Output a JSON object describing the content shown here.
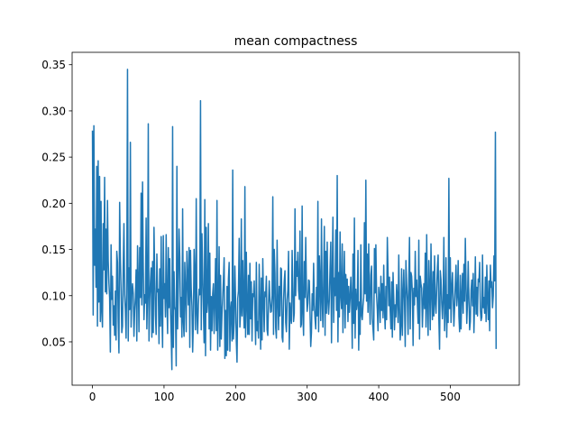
{
  "chart_data": {
    "type": "line",
    "title": "mean compactness",
    "xlabel": "",
    "ylabel": "",
    "xlim": [
      -28.4,
      596.4
    ],
    "ylim": [
      0.0031,
      0.3634
    ],
    "xticks": [
      0,
      100,
      200,
      300,
      400,
      500
    ],
    "yticks": [
      0.05,
      0.1,
      0.15,
      0.2,
      0.25,
      0.3,
      0.35
    ],
    "ytick_labels": [
      "0.05",
      "0.10",
      "0.15",
      "0.20",
      "0.25",
      "0.30",
      "0.35"
    ],
    "grid": false,
    "legend": "none",
    "line_color": "#1f77b4",
    "series": [
      {
        "x_start": 0,
        "x_step": 1,
        "values": [
          0.278,
          0.079,
          0.284,
          0.133,
          0.172,
          0.109,
          0.24,
          0.067,
          0.246,
          0.093,
          0.229,
          0.072,
          0.202,
          0.082,
          0.066,
          0.178,
          0.128,
          0.228,
          0.104,
          0.172,
          0.102,
          0.203,
          0.138,
          0.114,
          0.098,
          0.039,
          0.155,
          0.096,
          0.121,
          0.068,
          0.089,
          0.057,
          0.105,
          0.052,
          0.148,
          0.136,
          0.072,
          0.038,
          0.201,
          0.142,
          0.105,
          0.06,
          0.067,
          0.132,
          0.178,
          0.101,
          0.084,
          0.054,
          0.124,
          0.345,
          0.051,
          0.13,
          0.085,
          0.266,
          0.066,
          0.101,
          0.113,
          0.102,
          0.056,
          0.084,
          0.098,
          0.128,
          0.051,
          0.154,
          0.118,
          0.061,
          0.152,
          0.098,
          0.211,
          0.09,
          0.223,
          0.13,
          0.074,
          0.101,
          0.092,
          0.184,
          0.064,
          0.102,
          0.286,
          0.051,
          0.096,
          0.115,
          0.13,
          0.055,
          0.137,
          0.06,
          0.174,
          0.12,
          0.079,
          0.058,
          0.145,
          0.104,
          0.107,
          0.048,
          0.129,
          0.067,
          0.164,
          0.081,
          0.044,
          0.165,
          0.097,
          0.113,
          0.077,
          0.166,
          0.097,
          0.059,
          0.152,
          0.087,
          0.14,
          0.087,
          0.057,
          0.02,
          0.283,
          0.044,
          0.126,
          0.088,
          0.084,
          0.024,
          0.24,
          0.064,
          0.109,
          0.172,
          0.142,
          0.077,
          0.098,
          0.055,
          0.194,
          0.072,
          0.056,
          0.136,
          0.105,
          0.061,
          0.148,
          0.119,
          0.09,
          0.152,
          0.044,
          0.149,
          0.108,
          0.089,
          0.039,
          0.071,
          0.15,
          0.122,
          0.063,
          0.205,
          0.081,
          0.059,
          0.09,
          0.107,
          0.101,
          0.311,
          0.063,
          0.167,
          0.126,
          0.087,
          0.049,
          0.204,
          0.035,
          0.174,
          0.082,
          0.094,
          0.178,
          0.064,
          0.146,
          0.041,
          0.099,
          0.062,
          0.102,
          0.113,
          0.059,
          0.094,
          0.14,
          0.062,
          0.203,
          0.041,
          0.084,
          0.153,
          0.045,
          0.122,
          0.053,
          0.08,
          0.098,
          0.117,
          0.141,
          0.032,
          0.084,
          0.035,
          0.11,
          0.041,
          0.118,
          0.136,
          0.04,
          0.084,
          0.093,
          0.051,
          0.236,
          0.053,
          0.071,
          0.132,
          0.095,
          0.051,
          0.028,
          0.097,
          0.105,
          0.162,
          0.066,
          0.082,
          0.183,
          0.078,
          0.138,
          0.089,
          0.065,
          0.218,
          0.055,
          0.147,
          0.09,
          0.058,
          0.122,
          0.058,
          0.135,
          0.075,
          0.115,
          0.051,
          0.102,
          0.099,
          0.116,
          0.082,
          0.047,
          0.136,
          0.062,
          0.072,
          0.054,
          0.134,
          0.091,
          0.042,
          0.119,
          0.052,
          0.14,
          0.096,
          0.061,
          0.104,
          0.099,
          0.121,
          0.063,
          0.057,
          0.09,
          0.116,
          0.096,
          0.082,
          0.083,
          0.1,
          0.207,
          0.058,
          0.15,
          0.125,
          0.065,
          0.054,
          0.16,
          0.094,
          0.063,
          0.11,
          0.078,
          0.13,
          0.129,
          0.055,
          0.05,
          0.094,
          0.116,
          0.127,
          0.071,
          0.061,
          0.095,
          0.106,
          0.148,
          0.042,
          0.092,
          0.077,
          0.07,
          0.149,
          0.109,
          0.072,
          0.081,
          0.194,
          0.1,
          0.137,
          0.121,
          0.147,
          0.106,
          0.096,
          0.17,
          0.066,
          0.069,
          0.197,
          0.081,
          0.057,
          0.137,
          0.098,
          0.163,
          0.107,
          0.083,
          0.092,
          0.117,
          0.116,
          0.082,
          0.045,
          0.06,
          0.102,
          0.084,
          0.135,
          0.09,
          0.075,
          0.064,
          0.109,
          0.078,
          0.202,
          0.061,
          0.143,
          0.114,
          0.073,
          0.183,
          0.095,
          0.066,
          0.117,
          0.175,
          0.057,
          0.148,
          0.081,
          0.158,
          0.094,
          0.08,
          0.096,
          0.13,
          0.158,
          0.049,
          0.12,
          0.185,
          0.071,
          0.119,
          0.1,
          0.171,
          0.084,
          0.23,
          0.05,
          0.125,
          0.077,
          0.169,
          0.1,
          0.086,
          0.156,
          0.06,
          0.11,
          0.148,
          0.065,
          0.123,
          0.091,
          0.118,
          0.072,
          0.11,
          0.082,
          0.097,
          0.12,
          0.095,
          0.043,
          0.145,
          0.07,
          0.184,
          0.054,
          0.107,
          0.085,
          0.092,
          0.149,
          0.041,
          0.093,
          0.058,
          0.155,
          0.079,
          0.074,
          0.089,
          0.098,
          0.179,
          0.102,
          0.225,
          0.094,
          0.145,
          0.082,
          0.156,
          0.101,
          0.069,
          0.122,
          0.132,
          0.075,
          0.064,
          0.052,
          0.151,
          0.103,
          0.155,
          0.1,
          0.085,
          0.062,
          0.109,
          0.098,
          0.071,
          0.121,
          0.084,
          0.113,
          0.076,
          0.133,
          0.086,
          0.064,
          0.11,
          0.074,
          0.163,
          0.126,
          0.089,
          0.12,
          0.084,
          0.064,
          0.115,
          0.055,
          0.125,
          0.097,
          0.063,
          0.09,
          0.077,
          0.112,
          0.097,
          0.071,
          0.144,
          0.088,
          0.052,
          0.068,
          0.129,
          0.057,
          0.101,
          0.128,
          0.094,
          0.045,
          0.138,
          0.112,
          0.095,
          0.058,
          0.117,
          0.163,
          0.064,
          0.125,
          0.121,
          0.103,
          0.046,
          0.108,
          0.09,
          0.148,
          0.099,
          0.117,
          0.091,
          0.07,
          0.16,
          0.053,
          0.121,
          0.113,
          0.108,
          0.066,
          0.093,
          0.113,
          0.086,
          0.146,
          0.066,
          0.166,
          0.091,
          0.057,
          0.138,
          0.108,
          0.063,
          0.156,
          0.104,
          0.074,
          0.126,
          0.078,
          0.143,
          0.092,
          0.081,
          0.108,
          0.131,
          0.144,
          0.075,
          0.042,
          0.127,
          0.117,
          0.092,
          0.075,
          0.096,
          0.163,
          0.062,
          0.086,
          0.141,
          0.055,
          0.101,
          0.071,
          0.227,
          0.086,
          0.141,
          0.071,
          0.108,
          0.125,
          0.098,
          0.067,
          0.087,
          0.113,
          0.133,
          0.089,
          0.101,
          0.138,
          0.078,
          0.061,
          0.122,
          0.064,
          0.099,
          0.124,
          0.081,
          0.134,
          0.094,
          0.162,
          0.111,
          0.07,
          0.093,
          0.137,
          0.097,
          0.063,
          0.072,
          0.106,
          0.117,
          0.089,
          0.124,
          0.06,
          0.094,
          0.142,
          0.08,
          0.109,
          0.078,
          0.118,
          0.115,
          0.136,
          0.085,
          0.073,
          0.077,
          0.144,
          0.087,
          0.098,
          0.081,
          0.12,
          0.072,
          0.133,
          0.097,
          0.074,
          0.116,
          0.062,
          0.133,
          0.109,
          0.115,
          0.087,
          0.1,
          0.143,
          0.116,
          0.277,
          0.043
        ]
      }
    ]
  }
}
